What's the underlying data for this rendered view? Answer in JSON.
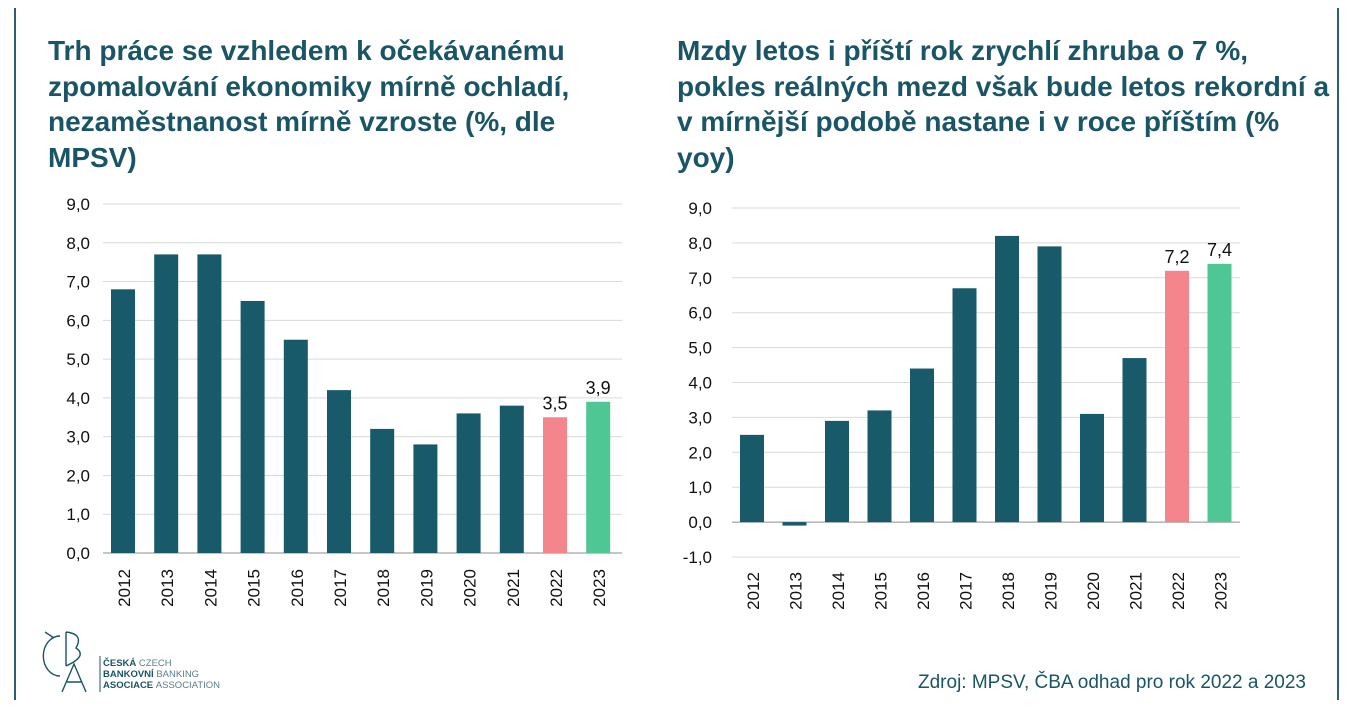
{
  "titles": [
    "Trh práce se vzhledem k očekávanému zpomalování ekonomiky mírně ochladí, nezaměstnanost mírně vzroste (%, dle MPSV)",
    "Mzdy letos i příští rok zrychlí zhruba o 7 %, pokles reálných mezd však bude letos rekordní a v mírnější podobě nastane i v roce příštím (% yoy)"
  ],
  "source": "Zdroj: MPSV, ČBA odhad pro rok 2022 a 2023",
  "logo": {
    "mark": "ČBA",
    "lines": [
      {
        "cz": "ČESKÁ",
        "en": "CZECH"
      },
      {
        "cz": "BANKOVNÍ",
        "en": "BANKING"
      },
      {
        "cz": "ASOCIACE",
        "en": "ASSOCIATION"
      }
    ]
  },
  "colors": {
    "actual": "#185a6a",
    "estimate_2022": "#f4858d",
    "estimate_2023": "#4fc795",
    "title": "#1a5566"
  },
  "chart_data": [
    {
      "type": "bar",
      "title": "Trh práce se vzhledem k očekávanému zpomalování ekonomiky mírně ochladí, nezaměstnanost mírně vzroste (%, dle MPSV)",
      "categories": [
        "2012",
        "2013",
        "2014",
        "2015",
        "2016",
        "2017",
        "2018",
        "2019",
        "2020",
        "2021",
        "2022",
        "2023"
      ],
      "values": [
        6.8,
        7.7,
        7.7,
        6.5,
        5.5,
        4.2,
        3.2,
        2.8,
        3.6,
        3.8,
        3.5,
        3.9
      ],
      "data_labels": {
        "2022": "3,5",
        "2023": "3,9"
      },
      "yticks": [
        "0,0",
        "1,0",
        "2,0",
        "3,0",
        "4,0",
        "5,0",
        "6,0",
        "7,0",
        "8,0",
        "9,0"
      ],
      "ylim": [
        0,
        9
      ],
      "grid": true
    },
    {
      "type": "bar",
      "title": "Mzdy letos i příští rok zrychlí zhruba o 7 %, pokles reálných mezd však bude letos rekordní a v mírnější podobě nastane i v roce příštím (% yoy)",
      "categories": [
        "2012",
        "2013",
        "2014",
        "2015",
        "2016",
        "2017",
        "2018",
        "2019",
        "2020",
        "2021",
        "2022",
        "2023"
      ],
      "values": [
        2.5,
        -0.1,
        2.9,
        3.2,
        4.4,
        6.7,
        8.2,
        7.9,
        3.1,
        4.7,
        7.2,
        7.4
      ],
      "data_labels": {
        "2022": "7,2",
        "2023": "7,4"
      },
      "yticks": [
        "-1,0",
        "0,0",
        "1,0",
        "2,0",
        "3,0",
        "4,0",
        "5,0",
        "6,0",
        "7,0",
        "8,0",
        "9,0"
      ],
      "ylim": [
        -1,
        9
      ],
      "grid": true
    }
  ]
}
